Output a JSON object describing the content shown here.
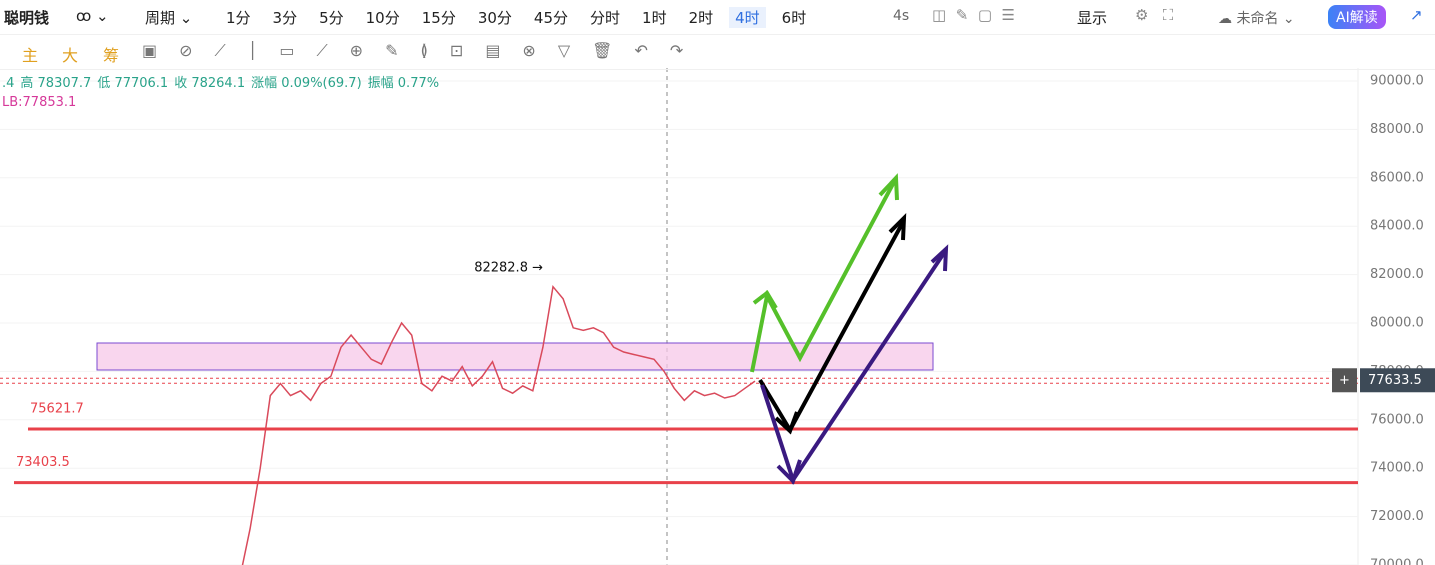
{
  "toolbar": {
    "brand": "聪明钱",
    "period": "周期",
    "intervals": [
      "1分",
      "3分",
      "5分",
      "10分",
      "15分",
      "30分",
      "45分",
      "分时",
      "1时",
      "2时",
      "4时",
      "6时"
    ],
    "refresh": "4s",
    "display": "显示",
    "layout_name": "未命名",
    "ai": "AI解读"
  },
  "drawbar": {
    "main": "主",
    "big": "大",
    "chips": "筹"
  },
  "info_line": [
    ".4",
    "高 78307.7",
    "低 77706.1",
    "收 78264.1",
    "涨幅 0.09%(69.7)",
    "振幅 0.77%"
  ],
  "indicator_line": "LB:77853.1",
  "chart": {
    "ylim": [
      70000,
      90000
    ],
    "yticks": [
      {
        "value": 70000,
        "label": "70000.0"
      },
      {
        "value": 72000,
        "label": "72000.0"
      },
      {
        "value": 74000,
        "label": "74000.0"
      },
      {
        "value": 76000,
        "label": "76000.0"
      },
      {
        "value": 78000,
        "label": "78000.0"
      },
      {
        "value": 80000,
        "label": "80000.0"
      },
      {
        "value": 82000,
        "label": "82000.0"
      },
      {
        "value": 84000,
        "label": "84000.0"
      },
      {
        "value": 86000,
        "label": "86000.0"
      },
      {
        "value": 88000,
        "label": "88000.0"
      },
      {
        "value": 90000,
        "label": "90000.0"
      }
    ],
    "close": [
      69500,
      71500,
      74000,
      77000,
      77500,
      77000,
      77200,
      76800,
      77500,
      77800,
      79000,
      79500,
      79000,
      78500,
      78300,
      79200,
      80000,
      79500,
      77500,
      77200,
      77800,
      77600,
      78200,
      77400,
      77800,
      78400,
      77300,
      77100,
      77400,
      77200,
      79000,
      81500,
      81000,
      79800,
      79700,
      79800,
      79600,
      79000,
      78800,
      78700,
      78600,
      78500,
      78000,
      77300,
      76800,
      77200,
      77000,
      77100,
      76900,
      77000,
      77300,
      77600
    ],
    "levels": [
      {
        "value": 75621.7,
        "label": "75621.7"
      },
      {
        "value": 73403.5,
        "label": "73403.5"
      }
    ],
    "current_price": {
      "value": 77633.5,
      "label": "77633.5"
    },
    "high_marker": {
      "value": 82282.8,
      "label": "82282.8 →"
    }
  }
}
